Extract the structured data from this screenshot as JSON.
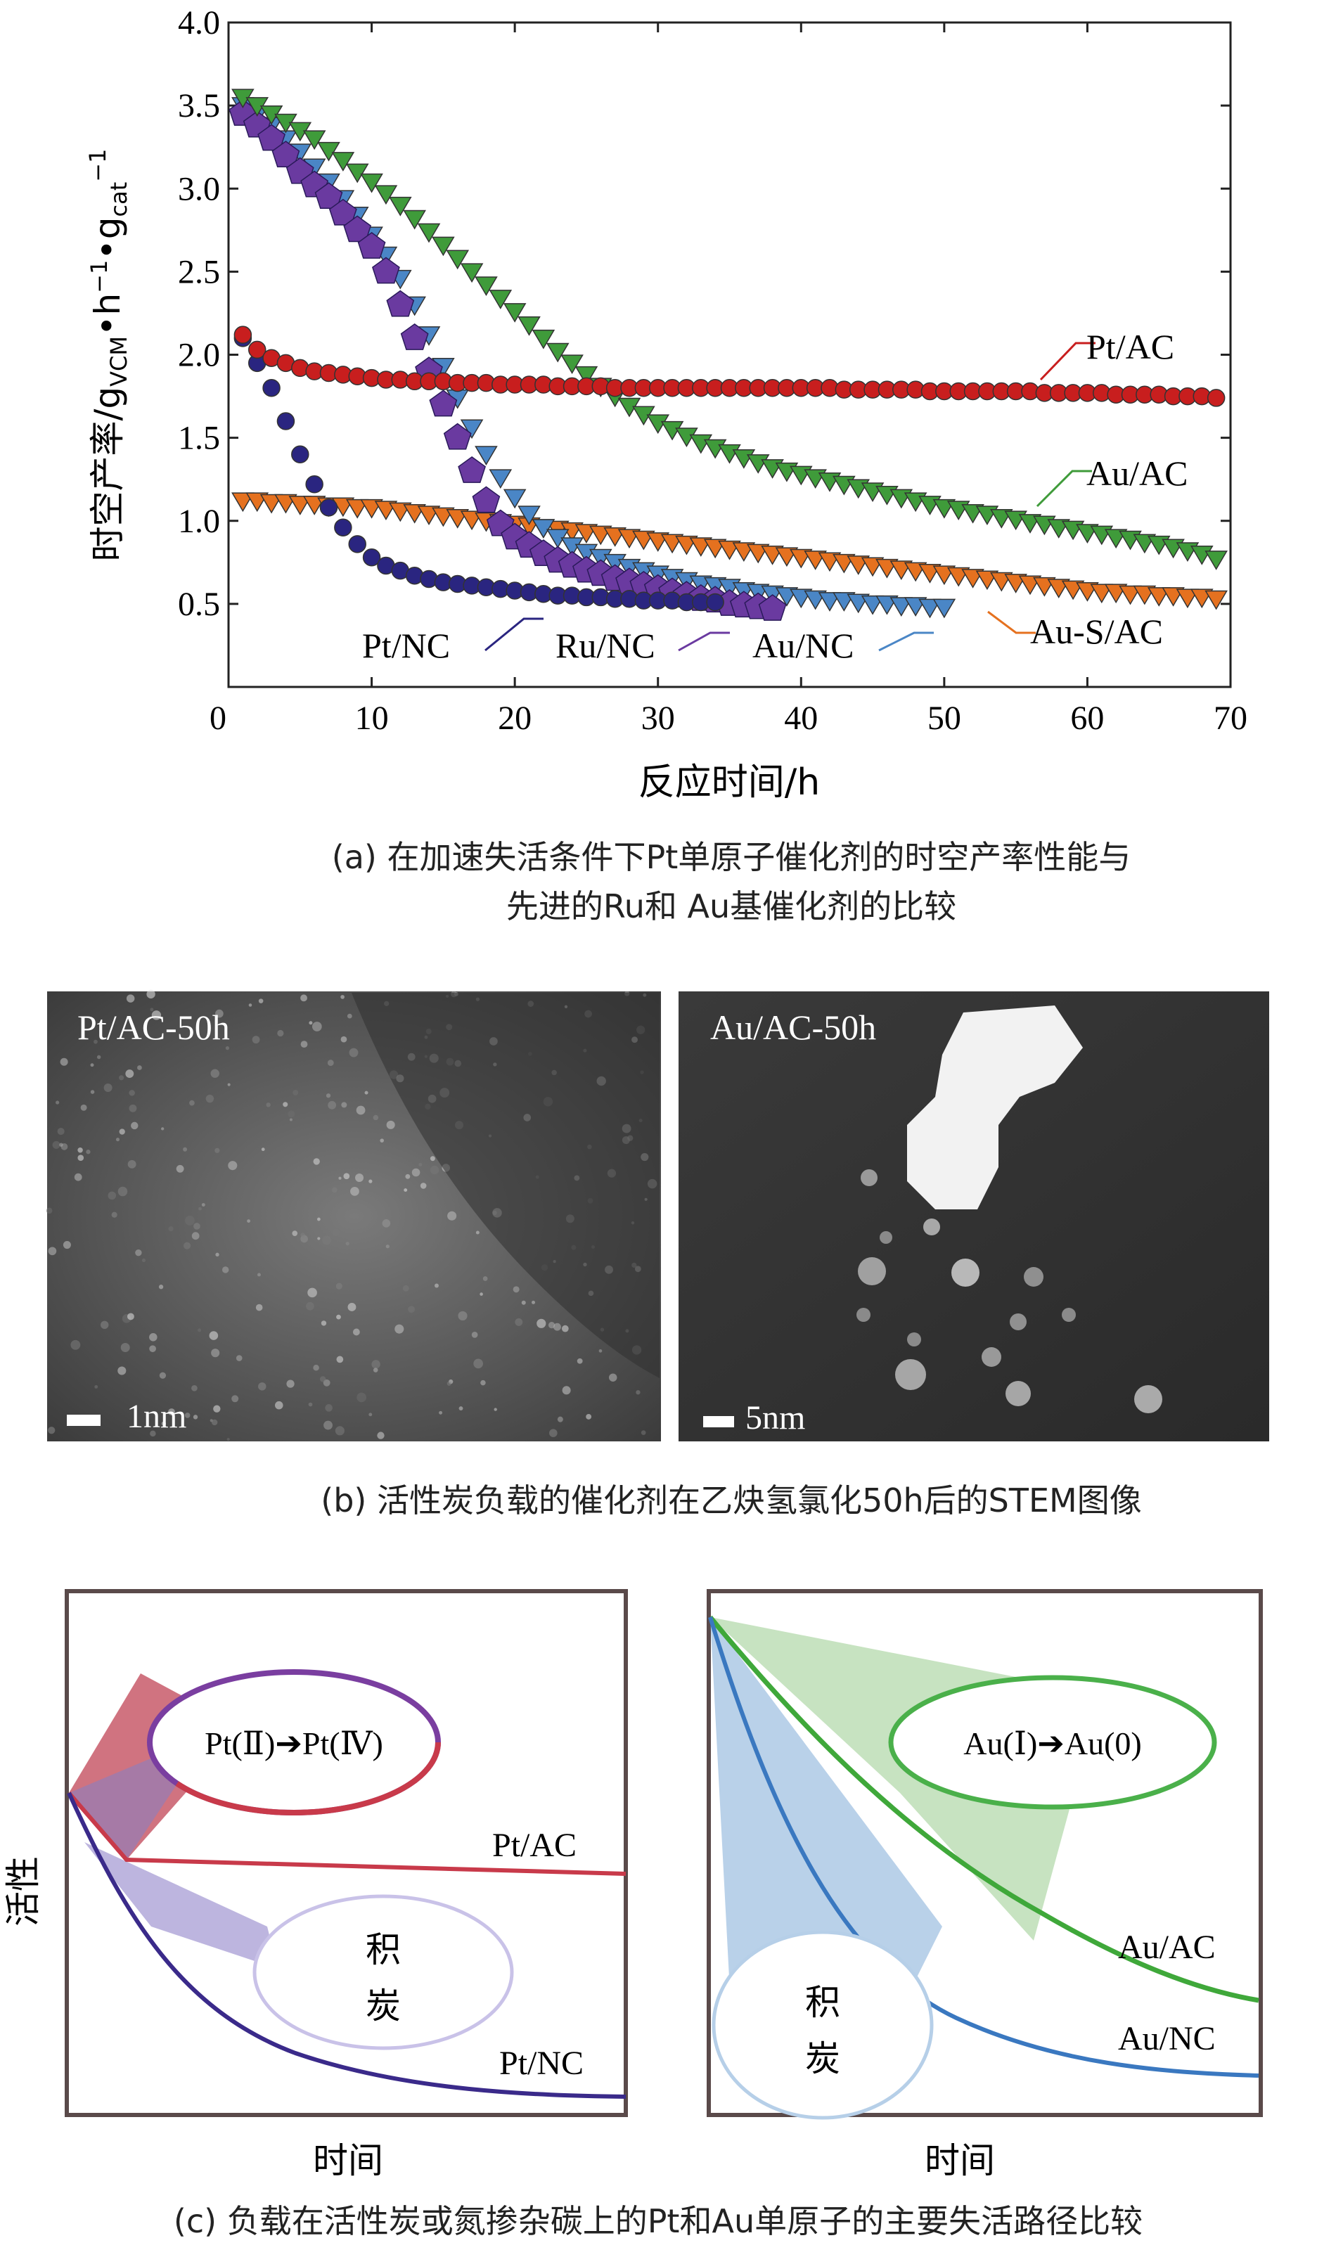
{
  "colors": {
    "pt_ac": "#c81e1e",
    "au_ac": "#3f9b3a",
    "pt_nc": "#2a2580",
    "ru_nc": "#6a3aa0",
    "au_nc": "#4a86c6",
    "au_s_ac": "#e5711f"
  },
  "chart_data": [
    {
      "type": "scatter",
      "panel": "a",
      "xlabel": "反应时间/h",
      "ylabel": "时空产率/g",
      "ylabel_sub": "VCM",
      "ylabel_part2": "•h",
      "ylabel_sup1": "−1",
      "ylabel_part3": "•g",
      "ylabel_sub2": "cat",
      "ylabel_sup2": "−1",
      "xlim": [
        0,
        70
      ],
      "ylim": [
        0,
        4.0
      ],
      "x_ticks": [
        "0",
        "10",
        "20",
        "30",
        "40",
        "50",
        "60",
        "70"
      ],
      "y_ticks": [
        "0.5",
        "1.0",
        "1.5",
        "2.0",
        "2.5",
        "3.0",
        "3.5",
        "4.0"
      ],
      "series": [
        {
          "name": "Pt/AC",
          "marker": "circle",
          "color": "#c81e1e",
          "x": [
            1,
            2,
            3,
            4,
            5,
            6,
            7,
            8,
            9,
            10,
            11,
            12,
            13,
            14,
            15,
            16,
            17,
            18,
            19,
            20,
            21,
            22,
            23,
            24,
            25,
            26,
            27,
            28,
            29,
            30,
            31,
            32,
            33,
            34,
            35,
            36,
            37,
            38,
            39,
            40,
            41,
            42,
            43,
            44,
            45,
            46,
            47,
            48,
            49,
            50,
            51,
            52,
            53,
            54,
            55,
            56,
            57,
            58,
            59,
            60,
            61,
            62,
            63,
            64,
            65,
            66,
            67,
            68,
            69
          ],
          "y": [
            2.12,
            2.03,
            1.98,
            1.95,
            1.92,
            1.9,
            1.89,
            1.88,
            1.87,
            1.86,
            1.85,
            1.85,
            1.84,
            1.84,
            1.84,
            1.83,
            1.83,
            1.83,
            1.82,
            1.82,
            1.82,
            1.82,
            1.81,
            1.81,
            1.81,
            1.81,
            1.8,
            1.8,
            1.8,
            1.8,
            1.8,
            1.8,
            1.8,
            1.8,
            1.8,
            1.8,
            1.8,
            1.8,
            1.8,
            1.8,
            1.8,
            1.8,
            1.79,
            1.79,
            1.79,
            1.79,
            1.79,
            1.79,
            1.78,
            1.78,
            1.78,
            1.78,
            1.78,
            1.78,
            1.78,
            1.78,
            1.77,
            1.77,
            1.77,
            1.77,
            1.77,
            1.76,
            1.76,
            1.76,
            1.76,
            1.75,
            1.75,
            1.75,
            1.74
          ]
        },
        {
          "name": "Au/AC",
          "marker": "triangle-down",
          "color": "#3f9b3a",
          "x": [
            1,
            2,
            3,
            4,
            5,
            6,
            7,
            8,
            9,
            10,
            11,
            12,
            13,
            14,
            15,
            16,
            17,
            18,
            19,
            20,
            21,
            22,
            23,
            24,
            25,
            26,
            27,
            28,
            29,
            30,
            31,
            32,
            33,
            34,
            35,
            36,
            37,
            38,
            39,
            40,
            41,
            42,
            43,
            44,
            45,
            46,
            47,
            48,
            49,
            50,
            51,
            52,
            53,
            54,
            55,
            56,
            57,
            58,
            59,
            60,
            61,
            62,
            63,
            64,
            65,
            66,
            67,
            68,
            69
          ],
          "y": [
            3.55,
            3.5,
            3.45,
            3.4,
            3.35,
            3.3,
            3.23,
            3.17,
            3.1,
            3.04,
            2.97,
            2.9,
            2.82,
            2.74,
            2.66,
            2.58,
            2.5,
            2.42,
            2.34,
            2.26,
            2.18,
            2.1,
            2.02,
            1.95,
            1.88,
            1.81,
            1.75,
            1.69,
            1.64,
            1.59,
            1.55,
            1.51,
            1.47,
            1.44,
            1.41,
            1.38,
            1.35,
            1.32,
            1.3,
            1.28,
            1.26,
            1.24,
            1.22,
            1.2,
            1.18,
            1.16,
            1.14,
            1.12,
            1.1,
            1.08,
            1.07,
            1.05,
            1.04,
            1.02,
            1.01,
            0.99,
            0.98,
            0.96,
            0.95,
            0.93,
            0.92,
            0.9,
            0.89,
            0.87,
            0.86,
            0.84,
            0.82,
            0.8,
            0.77
          ]
        },
        {
          "name": "Pt/NC",
          "marker": "circle",
          "color": "#2a2580",
          "x": [
            1,
            2,
            3,
            4,
            5,
            6,
            7,
            8,
            9,
            10,
            11,
            12,
            13,
            14,
            15,
            16,
            17,
            18,
            19,
            20,
            21,
            22,
            23,
            24,
            25,
            26,
            27,
            28,
            29,
            30,
            31,
            32,
            33,
            34
          ],
          "y": [
            2.1,
            1.95,
            1.8,
            1.6,
            1.4,
            1.22,
            1.08,
            0.96,
            0.86,
            0.78,
            0.73,
            0.7,
            0.67,
            0.65,
            0.63,
            0.62,
            0.61,
            0.6,
            0.59,
            0.58,
            0.57,
            0.56,
            0.55,
            0.55,
            0.54,
            0.54,
            0.53,
            0.53,
            0.52,
            0.52,
            0.52,
            0.51,
            0.51,
            0.51
          ]
        },
        {
          "name": "Ru/NC",
          "marker": "pentagon",
          "color": "#6a3aa0",
          "x": [
            1,
            2,
            3,
            4,
            5,
            6,
            7,
            8,
            9,
            10,
            11,
            12,
            13,
            14,
            15,
            16,
            17,
            18,
            19,
            20,
            21,
            22,
            23,
            24,
            25,
            26,
            27,
            28,
            29,
            30,
            31,
            32,
            33,
            34,
            35,
            36,
            37,
            38
          ],
          "y": [
            3.45,
            3.38,
            3.3,
            3.2,
            3.1,
            3.02,
            2.95,
            2.85,
            2.75,
            2.65,
            2.5,
            2.3,
            2.1,
            1.9,
            1.7,
            1.5,
            1.3,
            1.12,
            0.98,
            0.9,
            0.85,
            0.8,
            0.76,
            0.73,
            0.7,
            0.68,
            0.65,
            0.63,
            0.61,
            0.59,
            0.57,
            0.55,
            0.53,
            0.52,
            0.5,
            0.49,
            0.48,
            0.47
          ]
        },
        {
          "name": "Au/NC",
          "marker": "triangle-down",
          "color": "#4a86c6",
          "x": [
            1,
            2,
            3,
            4,
            5,
            6,
            7,
            8,
            9,
            10,
            11,
            12,
            13,
            14,
            15,
            16,
            17,
            18,
            19,
            20,
            21,
            22,
            23,
            24,
            25,
            26,
            27,
            28,
            29,
            30,
            31,
            32,
            33,
            34,
            35,
            36,
            37,
            38,
            39,
            40,
            41,
            42,
            43,
            44,
            45,
            46,
            47,
            48,
            49,
            50
          ],
          "y": [
            3.5,
            3.45,
            3.38,
            3.3,
            3.22,
            3.13,
            3.04,
            2.94,
            2.84,
            2.72,
            2.6,
            2.46,
            2.3,
            2.12,
            1.93,
            1.74,
            1.56,
            1.4,
            1.26,
            1.14,
            1.04,
            0.96,
            0.9,
            0.85,
            0.81,
            0.78,
            0.75,
            0.72,
            0.7,
            0.68,
            0.66,
            0.64,
            0.62,
            0.61,
            0.6,
            0.58,
            0.57,
            0.56,
            0.55,
            0.54,
            0.53,
            0.52,
            0.52,
            0.51,
            0.5,
            0.5,
            0.49,
            0.49,
            0.48,
            0.48
          ]
        },
        {
          "name": "Au-S/AC",
          "marker": "triangle-down",
          "color": "#e5711f",
          "x": [
            1,
            2,
            3,
            4,
            5,
            6,
            7,
            8,
            9,
            10,
            11,
            12,
            13,
            14,
            15,
            16,
            17,
            18,
            19,
            20,
            21,
            22,
            23,
            24,
            25,
            26,
            27,
            28,
            29,
            30,
            31,
            32,
            33,
            34,
            35,
            36,
            37,
            38,
            39,
            40,
            41,
            42,
            43,
            44,
            45,
            46,
            47,
            48,
            49,
            50,
            51,
            52,
            53,
            54,
            55,
            56,
            57,
            58,
            59,
            60,
            61,
            62,
            63,
            64,
            65,
            66,
            67,
            68,
            69
          ],
          "y": [
            1.12,
            1.12,
            1.11,
            1.11,
            1.1,
            1.1,
            1.09,
            1.09,
            1.08,
            1.08,
            1.07,
            1.06,
            1.05,
            1.04,
            1.03,
            1.02,
            1.01,
            1.0,
            0.99,
            0.98,
            0.97,
            0.96,
            0.95,
            0.94,
            0.93,
            0.92,
            0.91,
            0.9,
            0.89,
            0.88,
            0.87,
            0.86,
            0.85,
            0.84,
            0.83,
            0.82,
            0.81,
            0.8,
            0.79,
            0.78,
            0.77,
            0.76,
            0.75,
            0.74,
            0.73,
            0.72,
            0.71,
            0.7,
            0.69,
            0.68,
            0.67,
            0.66,
            0.65,
            0.64,
            0.63,
            0.62,
            0.61,
            0.6,
            0.59,
            0.58,
            0.57,
            0.57,
            0.56,
            0.56,
            0.55,
            0.55,
            0.54,
            0.54,
            0.53
          ]
        }
      ],
      "labels": [
        "Pt/AC",
        "Au/AC",
        "Au-S/AC",
        "Pt/NC",
        "Ru/NC",
        "Au/NC"
      ],
      "caption": "(a) 在加速失活条件下Pt单原子催化剂的时空产率性能与先进的Ru和 Au基催化剂的比较",
      "caption_line1": "(a) 在加速失活条件下Pt单原子催化剂的时空产率性能与",
      "caption_line2": "先进的Ru和 Au基催化剂的比较"
    }
  ],
  "panel_b": {
    "left_label": "Pt/AC-50h",
    "left_scale": "1nm",
    "right_label": "Au/AC-50h",
    "right_scale": "5nm",
    "caption": "(b) 活性炭负载的催化剂在乙炔氢氯化50h后的STEM图像"
  },
  "panel_c": {
    "ylabel": "活性",
    "left": {
      "xlabel": "时间",
      "ellipse_text": "Pt(Ⅱ)➔Pt(Ⅳ)",
      "coke_1": "积",
      "coke_2": "炭",
      "curve_top": "Pt/AC",
      "curve_bottom": "Pt/NC"
    },
    "right": {
      "xlabel": "时间",
      "ellipse_text": "Au(Ⅰ)➔Au(0)",
      "coke_1": "积",
      "coke_2": "炭",
      "curve_top": "Au/AC",
      "curve_bottom": "Au/NC"
    },
    "caption": "(c) 负载在活性炭或氮掺杂碳上的Pt和Au单原子的主要失活路径比较"
  }
}
